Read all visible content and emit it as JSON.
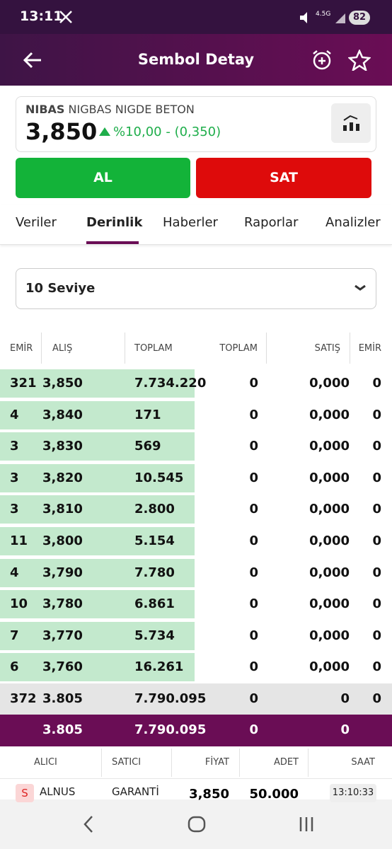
{
  "status_bar": {
    "time": "13:11",
    "network": "4.5G",
    "battery": "82"
  },
  "header": {
    "title": "Sembol Detay"
  },
  "symbol": {
    "code": "NIBAS",
    "name": "NIGBAS NIGDE BETON",
    "price": "3,850",
    "change": "%10,00 - (0,350)"
  },
  "buttons": {
    "buy": "AL",
    "sell": "SAT"
  },
  "tabs": {
    "items": [
      "Veriler",
      "Derinlik",
      "Haberler",
      "Raporlar",
      "Analizler"
    ],
    "active": 1
  },
  "depth_selector": "10 Seviye",
  "depth_table": {
    "columns": [
      "EMİR",
      "ALIŞ",
      "TOPLAM",
      "TOPLAM",
      "SATIŞ",
      "EMİR"
    ],
    "rows": [
      [
        "321",
        "3,850",
        "7.734.220",
        "0",
        "0,000",
        "0"
      ],
      [
        "4",
        "3,840",
        "171",
        "0",
        "0,000",
        "0"
      ],
      [
        "3",
        "3,830",
        "569",
        "0",
        "0,000",
        "0"
      ],
      [
        "3",
        "3,820",
        "10.545",
        "0",
        "0,000",
        "0"
      ],
      [
        "3",
        "3,810",
        "2.800",
        "0",
        "0,000",
        "0"
      ],
      [
        "11",
        "3,800",
        "5.154",
        "0",
        "0,000",
        "0"
      ],
      [
        "4",
        "3,790",
        "7.780",
        "0",
        "0,000",
        "0"
      ],
      [
        "10",
        "3,780",
        "6.861",
        "0",
        "0,000",
        "0"
      ],
      [
        "7",
        "3,770",
        "5.734",
        "0",
        "0,000",
        "0"
      ],
      [
        "6",
        "3,760",
        "16.261",
        "0",
        "0,000",
        "0"
      ]
    ],
    "total_row": [
      "372",
      "3.805",
      "7.790.095",
      "0",
      "0",
      "0"
    ],
    "summary_row": [
      "3.805",
      "7.790.095",
      "0",
      "0"
    ]
  },
  "trades": {
    "columns": [
      "ALICI",
      "SATICI",
      "FİYAT",
      "ADET",
      "SAAT"
    ],
    "rows": [
      {
        "side": "S",
        "buyer": "ALNUS",
        "seller": "GARANTİ",
        "price": "3,850",
        "quantity": "50.000",
        "time": "13:10:33"
      }
    ]
  }
}
